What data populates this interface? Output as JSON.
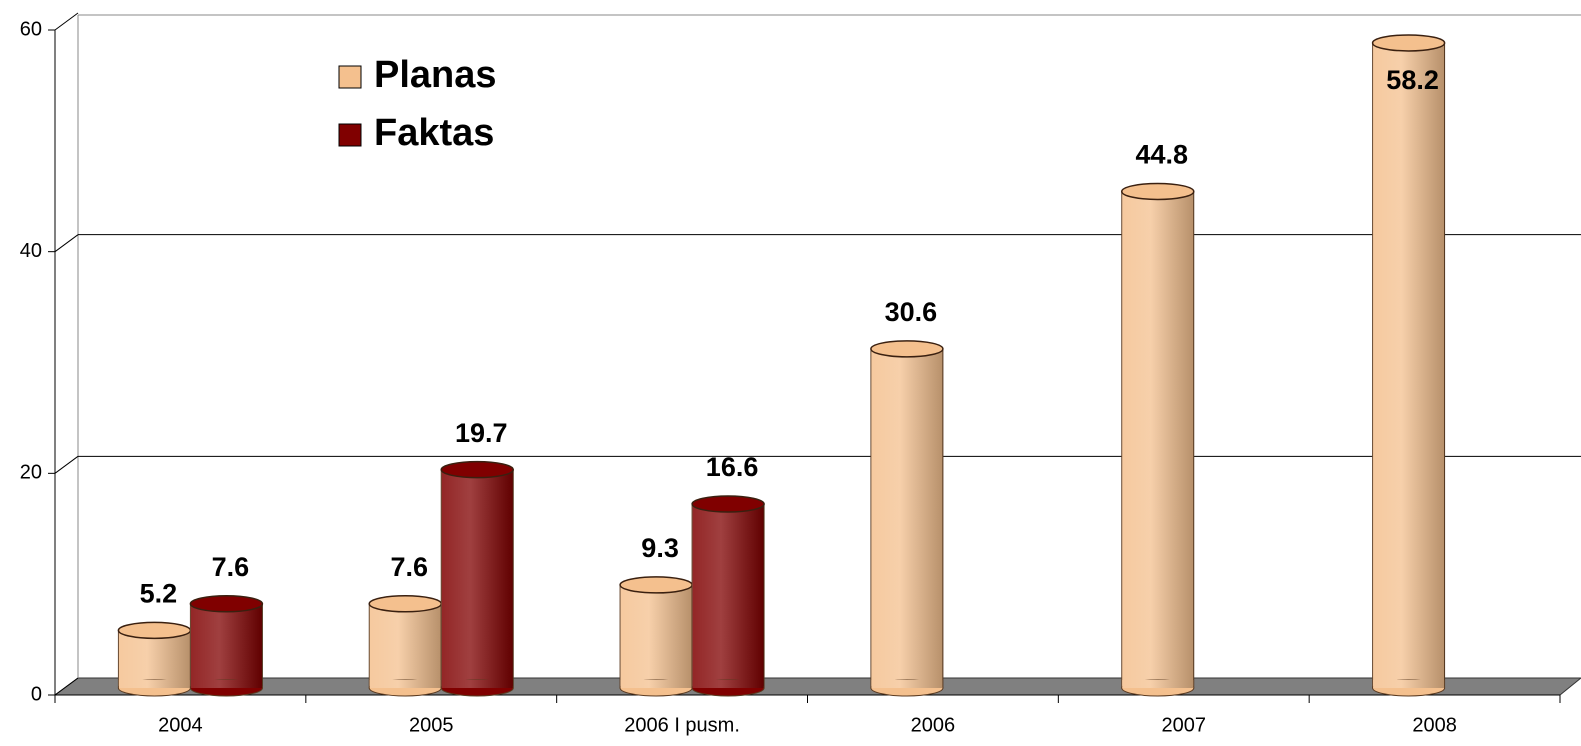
{
  "chart_data": {
    "type": "bar",
    "categories": [
      "2004",
      "2005",
      "2006 I pusm.",
      "2006",
      "2007",
      "2008"
    ],
    "series": [
      {
        "name": "Planas",
        "color": "#f4c08e",
        "values": [
          5.2,
          7.6,
          9.3,
          30.6,
          44.8,
          58.2
        ]
      },
      {
        "name": "Faktas",
        "color": "#800000",
        "values": [
          7.6,
          19.7,
          16.6,
          null,
          null,
          null
        ]
      }
    ],
    "ylim": [
      0,
      60
    ],
    "yticks": [
      0,
      20,
      40,
      60
    ],
    "grid": true,
    "legend": "top-left"
  }
}
